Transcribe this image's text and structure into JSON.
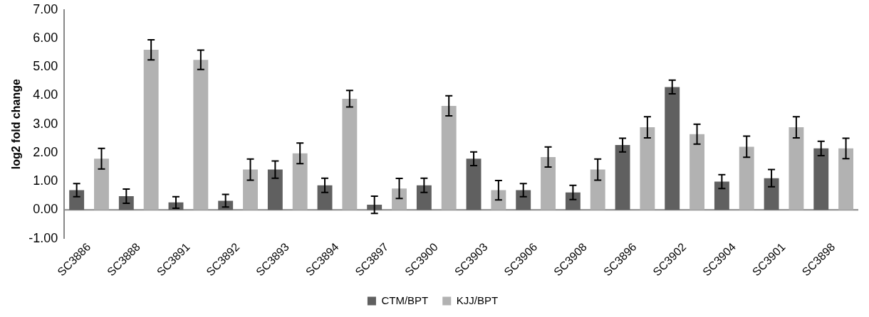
{
  "chart_data": {
    "type": "bar",
    "ylabel": "log2 fold change",
    "categories": [
      "SC3886",
      "SC3888",
      "SC3891",
      "SC3892",
      "SC3893",
      "SC3894",
      "SC3897",
      "SC3900",
      "SC3903",
      "SC3906",
      "SC3908",
      "SC3896",
      "SC3902",
      "SC3904",
      "SC3901",
      "SC3898"
    ],
    "series": [
      {
        "name": "CTM/BPT",
        "color": "#606060",
        "values": [
          0.69,
          0.48,
          0.26,
          0.32,
          1.41,
          0.86,
          0.18,
          0.86,
          1.79,
          0.69,
          0.61,
          2.27,
          4.3,
          0.99,
          1.11,
          2.15
        ],
        "errors": [
          0.23,
          0.25,
          0.2,
          0.22,
          0.3,
          0.25,
          0.3,
          0.25,
          0.24,
          0.23,
          0.25,
          0.24,
          0.24,
          0.24,
          0.3,
          0.25
        ]
      },
      {
        "name": "KJJ/BPT",
        "color": "#b2b2b2",
        "values": [
          1.79,
          5.6,
          5.25,
          1.41,
          1.98,
          3.89,
          0.75,
          3.64,
          0.69,
          1.85,
          1.41,
          2.89,
          2.65,
          2.21,
          2.89,
          2.15
        ],
        "errors": [
          0.36,
          0.35,
          0.34,
          0.37,
          0.36,
          0.29,
          0.35,
          0.35,
          0.34,
          0.35,
          0.37,
          0.37,
          0.35,
          0.37,
          0.37,
          0.36
        ]
      }
    ],
    "ylim": [
      -1,
      7
    ],
    "yticks": [
      {
        "value": -1,
        "label": "-1.00"
      },
      {
        "value": 0,
        "label": "0.00"
      },
      {
        "value": 1,
        "label": "1.00"
      },
      {
        "value": 2,
        "label": "2.00"
      },
      {
        "value": 3,
        "label": "3.00"
      },
      {
        "value": 4,
        "label": "4.00"
      },
      {
        "value": 5,
        "label": "5.00"
      },
      {
        "value": 6,
        "label": "6.00"
      },
      {
        "value": 7,
        "label": "7.00"
      }
    ],
    "ref_lines": [
      {
        "axis": "y",
        "value": 0,
        "color": "#888888"
      }
    ],
    "grid": false,
    "legend": "bottom"
  }
}
